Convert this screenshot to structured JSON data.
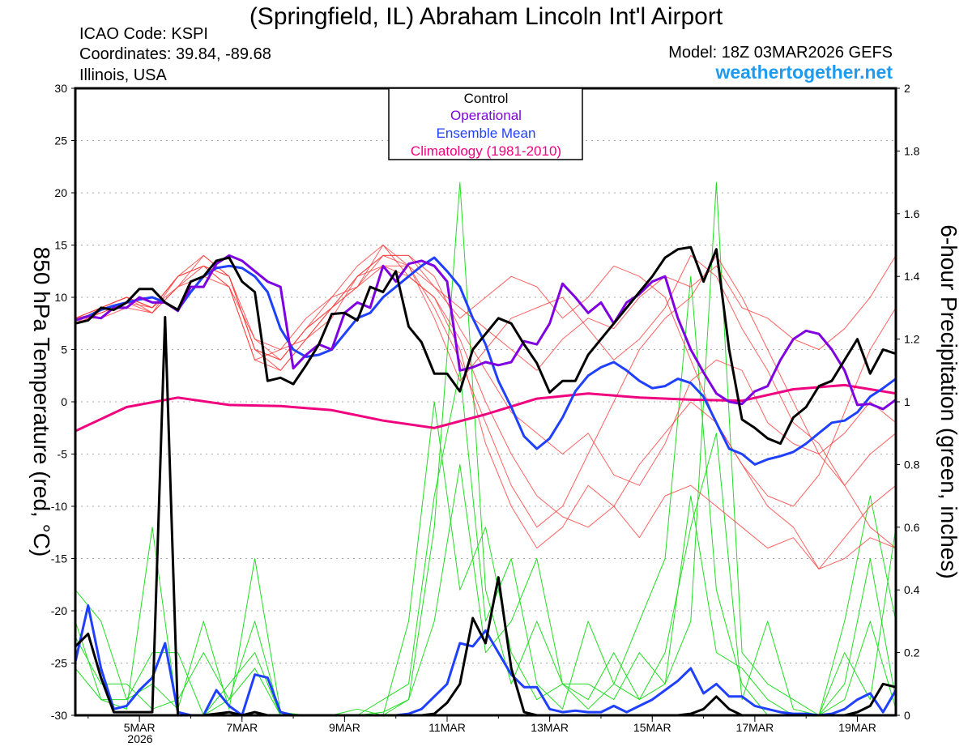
{
  "header": {
    "title": "(Springfield, IL) Abraham Lincoln Int'l Airport",
    "icao": "ICAO Code: KSPI",
    "coords": "Coordinates: 39.84, -89.68",
    "region": "Illinois, USA",
    "model": "Model: 18Z 03MAR2026 GEFS",
    "site": "weathertogether.net"
  },
  "colors": {
    "control": "#000000",
    "operational": "#7f00e0",
    "mean": "#2040ff",
    "climatology": "#f0007f",
    "member_temp": "#ff3b3b",
    "member_precip": "#22dd22",
    "site": "#1e9bf0"
  },
  "chart_data": {
    "type": "line",
    "title": "(Springfield, IL) Abraham Lincoln Int'l Airport",
    "ylabel": "850 hPa Temperature (red, °C)",
    "y2label": "6-hour Precipitation (green, inches)",
    "ylim": [
      -30,
      30
    ],
    "y2lim": [
      0,
      2
    ],
    "yticks": [
      "30",
      "25",
      "20",
      "15",
      "10",
      "5",
      "0",
      "-5",
      "-10",
      "-15",
      "-20",
      "-25",
      "-30"
    ],
    "y2ticks": [
      "2",
      "1.8",
      "1.6",
      "1.4",
      "1.2",
      "1",
      "0.8",
      "0.6",
      "0.4",
      "0.2",
      "0"
    ],
    "time_start": "18Z 03MAR2026",
    "time_step_hours": 6,
    "n_steps": 65,
    "xticks": [
      {
        "label": "5MAR",
        "index": 5
      },
      {
        "label": "7MAR",
        "index": 13
      },
      {
        "label": "9MAR",
        "index": 21
      },
      {
        "label": "11MAR",
        "index": 29
      },
      {
        "label": "13MAR",
        "index": 37
      },
      {
        "label": "15MAR",
        "index": 45
      },
      {
        "label": "17MAR",
        "index": 53
      },
      {
        "label": "19MAR",
        "index": 61
      }
    ],
    "year_label": "2026",
    "grid": true,
    "legend": {
      "placement": "top-center",
      "entries": [
        "Control",
        "Operational",
        "Ensemble Mean",
        "Climatology (1981-2010)"
      ]
    },
    "temperature": {
      "control": [
        7.5,
        7.8,
        9,
        8.8,
        9.5,
        10.8,
        10.8,
        9.5,
        8.8,
        11.5,
        12,
        13.5,
        13.8,
        11.5,
        10.5,
        2,
        2.3,
        1.7,
        3.5,
        5.5,
        8.4,
        8.5,
        7.8,
        11,
        10.5,
        12.5,
        7.2,
        5.7,
        2.7,
        2.7,
        1,
        5,
        6.5,
        8,
        7.5,
        5.5,
        3.7,
        0.9,
        2,
        2,
        4.5,
        6,
        7.5,
        9,
        10.5,
        12,
        13.8,
        14.6,
        14.8,
        11.5,
        14.6,
        5,
        -1.7,
        -2.5,
        -3.5,
        -4,
        -1.5,
        -0.5,
        1.5,
        2,
        4,
        6,
        2.7,
        5,
        4.6
      ],
      "operational": [
        7.8,
        8.2,
        8,
        9,
        9,
        10,
        9.5,
        9.5,
        8.7,
        11,
        11,
        13.2,
        14,
        13.5,
        12.5,
        11.5,
        11,
        3.2,
        4.5,
        5.5,
        5,
        8.5,
        9.5,
        9,
        13,
        11.5,
        13.2,
        13.5,
        13,
        11.5,
        3,
        3.3,
        3.8,
        3.5,
        3.8,
        5.8,
        5.5,
        7.5,
        11.3,
        10,
        8.5,
        9.5,
        7.5,
        9.5,
        10.3,
        11.5,
        12,
        8,
        5,
        2.8,
        0.8,
        0,
        -0.2,
        1,
        1.5,
        4,
        6,
        6.8,
        6.5,
        5,
        3,
        -0.3,
        -0.2,
        -0.7,
        0.2
      ],
      "ensemble_mean": [
        7.8,
        8.2,
        8.8,
        9.2,
        9.5,
        9.8,
        10,
        9.5,
        8.8,
        10.5,
        12,
        12.8,
        13,
        12.8,
        12,
        10.5,
        7,
        5,
        4.3,
        4.5,
        5,
        6.5,
        8,
        8.5,
        10,
        11,
        12,
        13,
        13.8,
        12.5,
        11,
        8,
        5.5,
        2,
        -0.5,
        -3.3,
        -4.5,
        -3.5,
        -1.5,
        1,
        2.5,
        3.3,
        3.8,
        3,
        2,
        1.3,
        1.5,
        2.2,
        1.8,
        0.5,
        -2,
        -4.5,
        -5,
        -6,
        -5.5,
        -5.2,
        -4.8,
        -4,
        -3,
        -2,
        -1.8,
        -1,
        0.5,
        1.3,
        2.2
      ],
      "climatology": {
        "x_index": [
          0,
          4,
          8,
          12,
          16,
          20,
          24,
          28,
          32,
          36,
          40,
          44,
          48,
          52,
          56,
          60,
          64
        ],
        "values": [
          -2.8,
          -0.5,
          0.4,
          -0.3,
          -0.4,
          -0.8,
          -1.8,
          -2.5,
          -1.2,
          0.3,
          0.8,
          0.4,
          0.2,
          0.1,
          1.2,
          1.6,
          0.8
        ]
      },
      "members_step": 2,
      "members": [
        [
          8,
          9,
          10,
          9,
          12,
          14,
          12,
          5,
          4,
          7,
          9,
          12,
          14,
          13,
          9,
          4,
          -2,
          -8,
          -12,
          -10,
          -5,
          0,
          5,
          8,
          10,
          14,
          10,
          5,
          0,
          -5,
          -8,
          -12,
          -14
        ],
        [
          7.5,
          8.5,
          9.5,
          8.5,
          11,
          13,
          11,
          4,
          5,
          8,
          10,
          13,
          15,
          12,
          10,
          6,
          0,
          -5,
          -9,
          -11,
          -12,
          -10,
          -13,
          -9,
          -8,
          -10,
          -12,
          -14,
          -13,
          -16,
          -15,
          -13,
          -14
        ],
        [
          8,
          9,
          10,
          9,
          12,
          13,
          12,
          6,
          4,
          7,
          9,
          11,
          13,
          13,
          11,
          9,
          7,
          5,
          3,
          6,
          8,
          7,
          10,
          12,
          11,
          13,
          9,
          8,
          6,
          5,
          7,
          10,
          14
        ],
        [
          8,
          8.5,
          9.5,
          9,
          11,
          14,
          12,
          5,
          3,
          6,
          8,
          12,
          14,
          14,
          12,
          7,
          3,
          -1,
          -3,
          -5,
          -3,
          -7,
          -8,
          -4,
          2,
          4,
          3,
          -2,
          -4,
          -5,
          -3,
          0,
          -2
        ],
        [
          7.5,
          9,
          10,
          8.5,
          12,
          13,
          11,
          6,
          5,
          6,
          9,
          12,
          13,
          12,
          10,
          5,
          -4,
          -10,
          -14,
          -12,
          -8,
          -10,
          -6,
          -3,
          0,
          -2,
          -6,
          -10,
          -12,
          -16,
          -13,
          -10,
          -8
        ],
        [
          8,
          8,
          9,
          8.5,
          11,
          12,
          11,
          4,
          3,
          6,
          9,
          11,
          15,
          13,
          8,
          2,
          5,
          8,
          9,
          10,
          7,
          4,
          6,
          9,
          14,
          12,
          7,
          3,
          -2,
          -4,
          -8,
          -5,
          -3
        ],
        [
          8,
          9,
          10,
          9,
          12,
          13,
          12,
          5,
          4,
          7,
          10,
          11,
          14,
          14,
          11,
          8,
          10,
          12,
          11,
          8,
          10,
          13,
          12,
          10,
          4,
          -2,
          -6,
          -9,
          -10,
          -7,
          -1,
          5,
          9
        ]
      ]
    },
    "precipitation": {
      "control": [
        0.22,
        0.26,
        0.12,
        0.01,
        0.01,
        0.01,
        0.01,
        1.27,
        0,
        0,
        0,
        0.005,
        0.01,
        0,
        0.01,
        0,
        0,
        0,
        0,
        0,
        0,
        0,
        0,
        0,
        0,
        0,
        0,
        0,
        0.005,
        0.04,
        0.1,
        0.31,
        0.23,
        0.44,
        0.15,
        0.01,
        0,
        0,
        0,
        0,
        0,
        0,
        0,
        0,
        0,
        0,
        0,
        0,
        0.005,
        0.02,
        0.06,
        0.02,
        0,
        0,
        0,
        0,
        0,
        0,
        0,
        0,
        0,
        0.01,
        0.03,
        0.1,
        0.09
      ],
      "ensemble_mean": [
        0.17,
        0.35,
        0.15,
        0.02,
        0.03,
        0.08,
        0.12,
        0.23,
        0.01,
        0,
        0,
        0.08,
        0.03,
        0,
        0.13,
        0.12,
        0.01,
        0,
        0,
        0,
        0,
        0,
        0,
        0,
        0,
        0,
        0.005,
        0.02,
        0.06,
        0.1,
        0.23,
        0.22,
        0.27,
        0.2,
        0.13,
        0.09,
        0.09,
        0.02,
        0.01,
        0.015,
        0.01,
        0.01,
        0.03,
        0.01,
        0.03,
        0.05,
        0.08,
        0.11,
        0.15,
        0.07,
        0.1,
        0.06,
        0.06,
        0.03,
        0.02,
        0.01,
        0.005,
        0.005,
        0,
        0.005,
        0.02,
        0.05,
        0.07,
        0.01,
        0.08
      ],
      "members_step": 2,
      "members": [
        [
          0.15,
          0.05,
          0.02,
          0.6,
          0,
          0,
          0.05,
          0.15,
          0,
          0,
          0,
          0.02,
          0,
          0.05,
          0.6,
          1.7,
          0.4,
          0.1,
          0.3,
          0.1,
          0.05,
          0.2,
          0.05,
          0.1,
          0.3,
          1.7,
          0.2,
          0.1,
          0.05,
          0,
          0.05,
          0.3,
          0.02
        ],
        [
          0.4,
          0.3,
          0.05,
          0.1,
          0.02,
          0.3,
          0.02,
          0.5,
          0.01,
          0,
          0,
          0,
          0,
          0.3,
          1.0,
          0.4,
          0.6,
          0.2,
          0.05,
          0.1,
          0.02,
          0.1,
          0.3,
          0.5,
          1.4,
          0.4,
          0.1,
          0,
          0,
          0,
          0.1,
          0.5,
          0.05
        ],
        [
          0.25,
          0.1,
          0.1,
          0.02,
          0.05,
          0.2,
          0.05,
          0.3,
          0,
          0,
          0,
          0,
          0.05,
          0.1,
          0.7,
          1.1,
          0.3,
          0.5,
          0.1,
          0.02,
          0.3,
          0.1,
          0.05,
          0.2,
          0.6,
          0.9,
          0.05,
          0.3,
          0.02,
          0,
          0.2,
          0.05,
          0.6
        ],
        [
          0.3,
          0.05,
          0.05,
          0.2,
          0.2,
          0,
          0.1,
          0.2,
          0,
          0,
          0,
          0,
          0.01,
          0.05,
          0.3,
          0.8,
          0.2,
          0.3,
          0.5,
          0.1,
          0.1,
          0.05,
          0.2,
          0.1,
          0.7,
          0.2,
          0.15,
          0.05,
          0,
          0,
          0.3,
          0.7,
          0.3
        ]
      ]
    }
  }
}
